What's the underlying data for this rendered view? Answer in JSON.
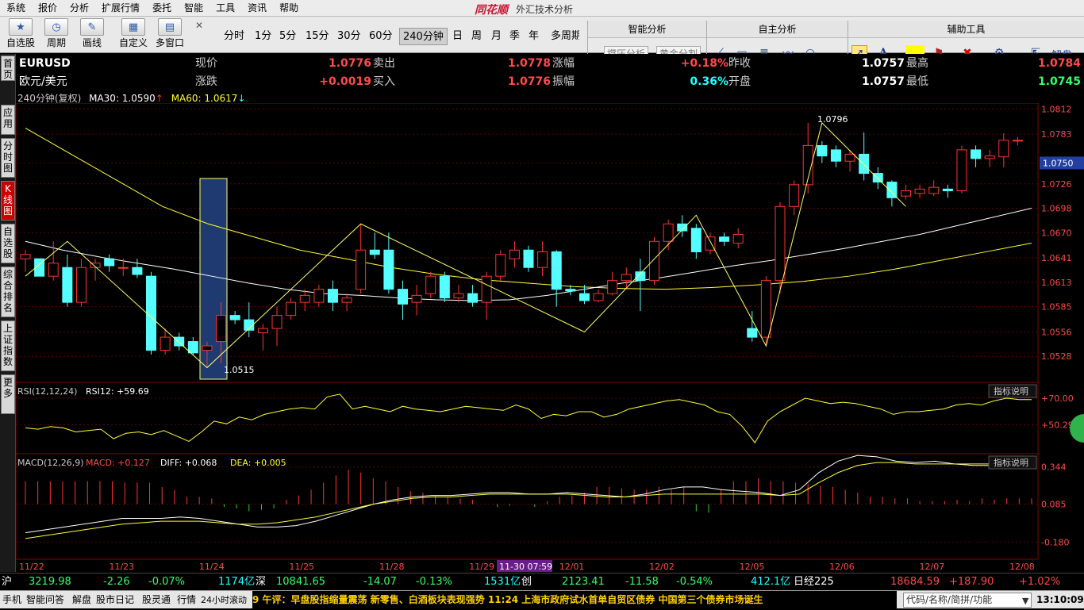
{
  "menu": {
    "items": [
      "系统",
      "报价",
      "分析",
      "扩展行情",
      "委托",
      "智能",
      "工具",
      "资讯",
      "帮助"
    ],
    "brand": "同花顺",
    "window_title": "外汇技术分析"
  },
  "toolbar": {
    "buttons": [
      {
        "label": "自选股",
        "icon": "star-icon"
      },
      {
        "label": "周期",
        "icon": "clock-icon"
      },
      {
        "label": "画线",
        "icon": "pen-icon"
      },
      {
        "label": "自定义",
        "icon": "grid-icon"
      },
      {
        "label": "多窗口",
        "icon": "windows-icon"
      }
    ],
    "periods": [
      "分时",
      "1分",
      "5分",
      "15分",
      "30分",
      "60分",
      "240分钟",
      "日",
      "周",
      "月",
      "季",
      "年",
      "多周期"
    ],
    "active_period": "240分钟"
  },
  "panels": {
    "smart_title": "智能分析",
    "smart_buttons": [
      "撑压分析",
      "黄金分割"
    ],
    "self_title": "自主分析",
    "aux_title": "辅助工具",
    "aux_label": "解盘"
  },
  "sidetabs": [
    "首页",
    "应用",
    "分时图",
    "K线图",
    "自选股",
    "综合排名",
    "上证指数",
    "更多"
  ],
  "quote": {
    "symbol": "EURUSD",
    "name": "欧元/美元",
    "l_now": "现价",
    "v_now": "1.0776",
    "l_sell": "卖出",
    "v_sell": "1.0778",
    "l_amp": "涨幅",
    "v_amp": "+0.18%",
    "l_prev": "昨收",
    "v_prev": "1.0757",
    "l_high": "最高",
    "v_high": "1.0784",
    "l_chg": "涨跌",
    "v_chg": "+0.0019",
    "l_buy": "买入",
    "v_buy": "1.0776",
    "l_range": "振幅",
    "v_range": "0.36%",
    "l_open": "开盘",
    "v_open": "1.0757",
    "l_low": "最低",
    "v_low": "1.0745"
  },
  "indicators": {
    "main_title": "240分钟(复权)",
    "ma30": "MA30: 1.0590",
    "ma60": "MA60: 1.0617",
    "rsi_title": "RSI(12,12,24)",
    "rsi_value": "RSI12: +59.69",
    "rsi_help": "指标说明",
    "macd_title": "MACD(12,26,9)",
    "macd_value": "MACD: +0.127",
    "diff_value": "DIFF: +0.068",
    "dea_value": "DEA: +0.005",
    "macd_help": "指标说明"
  },
  "colors": {
    "up": "#ff3333",
    "down": "#55ffff",
    "ma30": "#ffffff",
    "ma60": "#ffff33",
    "zigzag": "#ffff66",
    "highlight_box": "#1e3a70"
  },
  "chart_data": [
    {
      "type": "candlestick",
      "title": "EURUSD 240分钟",
      "y_ticks": [
        "1.0812",
        "1.0783",
        "1.0750",
        "1.0726",
        "1.0698",
        "1.0670",
        "1.0641",
        "1.0613",
        "1.0585",
        "1.0556",
        "1.0528"
      ],
      "ylim": [
        1.05,
        1.0815
      ],
      "x_ticks": [
        "11/22",
        "11/23",
        "11/24",
        "11/25",
        "11/28",
        "11/29",
        "12/01",
        "12/02",
        "12/05",
        "12/06",
        "12/07",
        "12/08"
      ],
      "cursor_label": "11-30 07:59",
      "current_price_label": "1.0750",
      "annotations": [
        {
          "text": "1.0515"
        },
        {
          "text": "1.0796"
        }
      ],
      "candles": [
        {
          "o": 1.064,
          "h": 1.065,
          "l": 1.0625,
          "c": 1.0645
        },
        {
          "o": 1.064,
          "h": 1.064,
          "l": 1.062,
          "c": 1.062
        },
        {
          "o": 1.062,
          "h": 1.066,
          "l": 1.0615,
          "c": 1.0635
        },
        {
          "o": 1.063,
          "h": 1.0645,
          "l": 1.0585,
          "c": 1.059
        },
        {
          "o": 1.059,
          "h": 1.064,
          "l": 1.0585,
          "c": 1.063
        },
        {
          "o": 1.063,
          "h": 1.064,
          "l": 1.0615,
          "c": 1.0635
        },
        {
          "o": 1.064,
          "h": 1.0645,
          "l": 1.0625,
          "c": 1.0632
        },
        {
          "o": 1.063,
          "h": 1.064,
          "l": 1.062,
          "c": 1.063
        },
        {
          "o": 1.063,
          "h": 1.064,
          "l": 1.0618,
          "c": 1.0622
        },
        {
          "o": 1.062,
          "h": 1.0625,
          "l": 1.053,
          "c": 1.0535
        },
        {
          "o": 1.0535,
          "h": 1.056,
          "l": 1.053,
          "c": 1.055
        },
        {
          "o": 1.055,
          "h": 1.0555,
          "l": 1.0535,
          "c": 1.054
        },
        {
          "o": 1.0545,
          "h": 1.055,
          "l": 1.053,
          "c": 1.0532
        },
        {
          "o": 1.0535,
          "h": 1.0545,
          "l": 1.0515,
          "c": 1.054
        },
        {
          "o": 1.0545,
          "h": 1.059,
          "l": 1.052,
          "c": 1.0575
        },
        {
          "o": 1.0575,
          "h": 1.058,
          "l": 1.0565,
          "c": 1.057
        },
        {
          "o": 1.057,
          "h": 1.059,
          "l": 1.055,
          "c": 1.0558
        },
        {
          "o": 1.0555,
          "h": 1.0565,
          "l": 1.0535,
          "c": 1.056
        },
        {
          "o": 1.056,
          "h": 1.0585,
          "l": 1.054,
          "c": 1.0575
        },
        {
          "o": 1.0575,
          "h": 1.0595,
          "l": 1.057,
          "c": 1.059
        },
        {
          "o": 1.059,
          "h": 1.0605,
          "l": 1.058,
          "c": 1.0598
        },
        {
          "o": 1.059,
          "h": 1.061,
          "l": 1.0585,
          "c": 1.0605
        },
        {
          "o": 1.0605,
          "h": 1.0615,
          "l": 1.058,
          "c": 1.059
        },
        {
          "o": 1.059,
          "h": 1.06,
          "l": 1.058,
          "c": 1.0595
        },
        {
          "o": 1.0605,
          "h": 1.068,
          "l": 1.06,
          "c": 1.065
        },
        {
          "o": 1.065,
          "h": 1.067,
          "l": 1.064,
          "c": 1.0645
        },
        {
          "o": 1.065,
          "h": 1.067,
          "l": 1.06,
          "c": 1.0605
        },
        {
          "o": 1.0605,
          "h": 1.0615,
          "l": 1.057,
          "c": 1.0588
        },
        {
          "o": 1.059,
          "h": 1.061,
          "l": 1.0575,
          "c": 1.0598
        },
        {
          "o": 1.06,
          "h": 1.0625,
          "l": 1.0595,
          "c": 1.062
        },
        {
          "o": 1.062,
          "h": 1.0625,
          "l": 1.059,
          "c": 1.0595
        },
        {
          "o": 1.0595,
          "h": 1.061,
          "l": 1.059,
          "c": 1.06
        },
        {
          "o": 1.06,
          "h": 1.061,
          "l": 1.0585,
          "c": 1.059
        },
        {
          "o": 1.059,
          "h": 1.0625,
          "l": 1.057,
          "c": 1.062
        },
        {
          "o": 1.062,
          "h": 1.065,
          "l": 1.0615,
          "c": 1.0645
        },
        {
          "o": 1.064,
          "h": 1.066,
          "l": 1.063,
          "c": 1.065
        },
        {
          "o": 1.065,
          "h": 1.0655,
          "l": 1.0625,
          "c": 1.063
        },
        {
          "o": 1.063,
          "h": 1.066,
          "l": 1.062,
          "c": 1.0648
        },
        {
          "o": 1.0648,
          "h": 1.065,
          "l": 1.0585,
          "c": 1.0605
        },
        {
          "o": 1.0605,
          "h": 1.061,
          "l": 1.0598,
          "c": 1.0603
        },
        {
          "o": 1.06,
          "h": 1.061,
          "l": 1.0588,
          "c": 1.0592
        },
        {
          "o": 1.0592,
          "h": 1.0605,
          "l": 1.059,
          "c": 1.06
        },
        {
          "o": 1.06,
          "h": 1.0625,
          "l": 1.0598,
          "c": 1.0615
        },
        {
          "o": 1.0615,
          "h": 1.063,
          "l": 1.0605,
          "c": 1.0622
        },
        {
          "o": 1.0625,
          "h": 1.064,
          "l": 1.058,
          "c": 1.0615
        },
        {
          "o": 1.0615,
          "h": 1.0665,
          "l": 1.061,
          "c": 1.066
        },
        {
          "o": 1.066,
          "h": 1.0685,
          "l": 1.065,
          "c": 1.068
        },
        {
          "o": 1.068,
          "h": 1.069,
          "l": 1.0665,
          "c": 1.0672
        },
        {
          "o": 1.0675,
          "h": 1.068,
          "l": 1.064,
          "c": 1.0648
        },
        {
          "o": 1.065,
          "h": 1.067,
          "l": 1.0645,
          "c": 1.0665
        },
        {
          "o": 1.0665,
          "h": 1.067,
          "l": 1.0655,
          "c": 1.066
        },
        {
          "o": 1.0658,
          "h": 1.0675,
          "l": 1.0652,
          "c": 1.0668
        },
        {
          "o": 1.056,
          "h": 1.058,
          "l": 1.0545,
          "c": 1.055
        },
        {
          "o": 1.055,
          "h": 1.062,
          "l": 1.054,
          "c": 1.0615
        },
        {
          "o": 1.0615,
          "h": 1.0705,
          "l": 1.06,
          "c": 1.07
        },
        {
          "o": 1.07,
          "h": 1.073,
          "l": 1.069,
          "c": 1.0725
        },
        {
          "o": 1.0725,
          "h": 1.0796,
          "l": 1.0715,
          "c": 1.077
        },
        {
          "o": 1.077,
          "h": 1.0775,
          "l": 1.075,
          "c": 1.0758
        },
        {
          "o": 1.0765,
          "h": 1.077,
          "l": 1.0745,
          "c": 1.0752
        },
        {
          "o": 1.0752,
          "h": 1.0765,
          "l": 1.074,
          "c": 1.076
        },
        {
          "o": 1.076,
          "h": 1.0785,
          "l": 1.073,
          "c": 1.0738
        },
        {
          "o": 1.0738,
          "h": 1.0745,
          "l": 1.072,
          "c": 1.0728
        },
        {
          "o": 1.0728,
          "h": 1.073,
          "l": 1.07,
          "c": 1.071
        },
        {
          "o": 1.0712,
          "h": 1.0725,
          "l": 1.0708,
          "c": 1.0718
        },
        {
          "o": 1.0715,
          "h": 1.0725,
          "l": 1.071,
          "c": 1.072
        },
        {
          "o": 1.0715,
          "h": 1.073,
          "l": 1.0712,
          "c": 1.0722
        },
        {
          "o": 1.072,
          "h": 1.0725,
          "l": 1.071,
          "c": 1.0718
        },
        {
          "o": 1.0718,
          "h": 1.077,
          "l": 1.0715,
          "c": 1.0765
        },
        {
          "o": 1.0765,
          "h": 1.077,
          "l": 1.0745,
          "c": 1.0755
        },
        {
          "o": 1.0755,
          "h": 1.0765,
          "l": 1.0745,
          "c": 1.0758
        },
        {
          "o": 1.0757,
          "h": 1.0784,
          "l": 1.0745,
          "c": 1.0776
        },
        {
          "o": 1.0776,
          "h": 1.078,
          "l": 1.077,
          "c": 1.0776
        }
      ],
      "ma30": [
        1.066,
        1.065,
        1.0642,
        1.0635,
        1.0628,
        1.062,
        1.0612,
        1.0605,
        1.06,
        1.0598,
        1.0595,
        1.0593,
        1.0592,
        1.0593,
        1.0598,
        1.0605,
        1.0612,
        1.0618,
        1.0625,
        1.0632,
        1.0638,
        1.0645,
        1.0652,
        1.066,
        1.0668,
        1.0678,
        1.0688,
        1.0698
      ],
      "ma60": [
        1.079,
        1.076,
        1.073,
        1.07,
        1.068,
        1.0665,
        1.065,
        1.064,
        1.063,
        1.0622,
        1.0616,
        1.0612,
        1.0608,
        1.0606,
        1.0605,
        1.0607,
        1.061,
        1.0614,
        1.062,
        1.0628,
        1.0638,
        1.0648,
        1.0658
      ],
      "zigzag_labels": [
        "1.0515",
        "1.0796"
      ]
    },
    {
      "type": "line",
      "title": "RSI(12,12,24)",
      "y_ticks": [
        "+70.00",
        "+50.29"
      ],
      "ylim": [
        30,
        80
      ],
      "values": [
        48,
        47,
        49,
        48,
        45,
        46,
        47,
        40,
        44,
        45,
        43,
        46,
        42,
        38,
        45,
        53,
        51,
        56,
        54,
        58,
        60,
        62,
        63,
        62,
        71,
        73,
        62,
        64,
        62,
        60,
        64,
        62,
        61,
        60,
        62,
        64,
        63,
        62,
        61,
        65,
        62,
        55,
        58,
        57,
        60,
        60,
        56,
        58,
        62,
        64,
        66,
        68,
        69,
        67,
        65,
        60,
        58,
        49,
        37,
        53,
        60,
        65,
        70,
        68,
        66,
        67,
        66,
        64,
        62,
        58,
        60,
        60,
        61,
        62,
        65,
        66,
        65,
        68,
        70,
        69,
        69
      ]
    },
    {
      "type": "bar",
      "title": "MACD(12,26,9)",
      "y_ticks": [
        "0.344",
        "0.085",
        "-0.180"
      ],
      "ylim": [
        -0.3,
        0.42
      ],
      "values": [
        0.16,
        0.16,
        0.16,
        0.16,
        0.16,
        0.16,
        0.16,
        0.16,
        0.15,
        0.15,
        0.15,
        0.12,
        0.1,
        0.05,
        0.05,
        0.04,
        -0.02,
        -0.03,
        -0.05,
        -0.04,
        -0.03,
        0.03,
        0.06,
        0.1,
        0.15,
        0.2,
        0.24,
        0.22,
        0.18,
        0.16,
        0.12,
        0.09,
        0.08,
        0.06,
        0.05,
        0.04,
        0.03,
        0.0,
        -0.02,
        -0.01,
        0.0,
        -0.02,
        0.02,
        0.05,
        0.06,
        0.08,
        0.12,
        0.12,
        0.11,
        0.1,
        0.1,
        0.12,
        0.1,
        0.12,
        -0.05,
        -0.06,
        0.1,
        0.16,
        0.16,
        0.18,
        0.16,
        0.16,
        0.15,
        0.14,
        0.13,
        0.12,
        0.1,
        0.08,
        0.05,
        0.05,
        0.04,
        0.04,
        0.02,
        0.02,
        0.02,
        0.03,
        0.02,
        0.04,
        0.03,
        0.04,
        0.04,
        0.04
      ],
      "diff": [
        -0.2,
        -0.18,
        -0.16,
        -0.14,
        -0.12,
        -0.1,
        -0.1,
        -0.1,
        -0.09,
        -0.1,
        -0.12,
        -0.14,
        -0.16,
        -0.16,
        -0.15,
        -0.12,
        -0.08,
        -0.04,
        0.0,
        0.03,
        0.05,
        0.06,
        0.06,
        0.07,
        0.08,
        0.08,
        0.07,
        0.07,
        0.08,
        0.07,
        0.06,
        0.05,
        0.07,
        0.1,
        0.12,
        0.12,
        0.1,
        0.09,
        0.08,
        0.06,
        0.1,
        0.22,
        0.3,
        0.34,
        0.33,
        0.3,
        0.29,
        0.3,
        0.28,
        0.27,
        0.27,
        0.28,
        0.3
      ],
      "dea": [
        -0.24,
        -0.22,
        -0.2,
        -0.18,
        -0.16,
        -0.14,
        -0.13,
        -0.12,
        -0.12,
        -0.12,
        -0.13,
        -0.14,
        -0.14,
        -0.13,
        -0.11,
        -0.09,
        -0.06,
        -0.03,
        0.0,
        0.02,
        0.04,
        0.05,
        0.05,
        0.06,
        0.07,
        0.07,
        0.07,
        0.07,
        0.07,
        0.06,
        0.05,
        0.05,
        0.06,
        0.07,
        0.07,
        0.07,
        0.07,
        0.07,
        0.07,
        0.06,
        0.07,
        0.15,
        0.22,
        0.27,
        0.29,
        0.29,
        0.28,
        0.28,
        0.28,
        0.28,
        0.28,
        0.28,
        0.29
      ]
    }
  ],
  "status": {
    "sh_label": "沪",
    "sh_value": "3219.98",
    "sh_chg": "-2.26",
    "sh_pct": "-0.07%",
    "sh_amt": "1174亿",
    "sz_label": "深",
    "sz_value": "10841.65",
    "sz_chg": "-14.07",
    "sz_pct": "-0.13%",
    "sz_amt": "1531亿",
    "cy_label": "创",
    "cy_value": "2123.41",
    "cy_chg": "-11.58",
    "cy_pct": "-0.54%",
    "cy_amt": "412.1亿",
    "nk_label": "日经225",
    "nk_value": "18684.59",
    "nk_chg": "+187.90",
    "nk_pct": "+1.02%"
  },
  "bottombar": {
    "tabs": [
      "手机",
      "智能问答",
      "解盘",
      "股市日记",
      "股灵通",
      "行情",
      "24小时滚动"
    ],
    "ticker": "9 午评：早盘股指缩量震荡 新零售、白酒板块表现强势                    11:24 上海市政府试水首单自贸区债券 中国第三个债券市场诞生",
    "code_placeholder": "代码/名称/简拼/功能",
    "clock": "13:10:09"
  }
}
